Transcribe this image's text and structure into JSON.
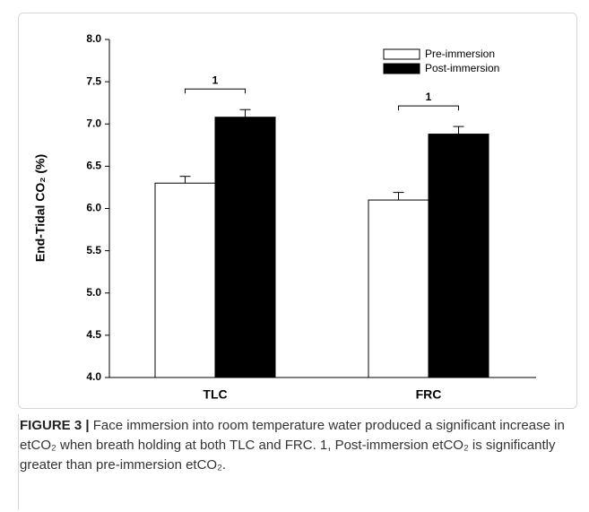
{
  "chart_data": {
    "type": "bar",
    "ylabel": "End-Tidal CO₂ (%)",
    "categories": [
      "TLC",
      "FRC"
    ],
    "series": [
      {
        "name": "Pre-immersion",
        "color": "#ffffff",
        "values": [
          6.3,
          6.1
        ],
        "errors": [
          0.08,
          0.09
        ]
      },
      {
        "name": "Post-immersion",
        "color": "#000000",
        "values": [
          7.08,
          6.88
        ],
        "errors": [
          0.09,
          0.09
        ]
      }
    ],
    "annotations": [
      "1",
      "1"
    ],
    "ylim": [
      4,
      8
    ],
    "yticks": [
      {
        "value": 4,
        "label": "4.0"
      },
      4.5,
      {
        "value": 5,
        "label": "5.0"
      },
      5.5,
      {
        "value": 6,
        "label": "6.0"
      },
      6.5,
      {
        "value": 7,
        "label": "7.0"
      },
      7.5,
      {
        "value": 8,
        "label": "8.0"
      }
    ],
    "legend": "top-right"
  },
  "figure_label": "FIGURE 3 |",
  "caption": "Face immersion into room temperature water produced a significant increase in etCO₂ when breath holding at both TLC and FRC. 1, Post-immersion etCO₂ is significantly greater than pre-immersion etCO₂."
}
